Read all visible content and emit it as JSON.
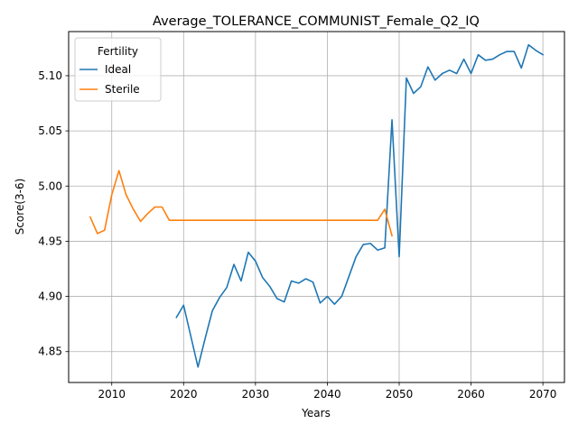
{
  "chart_data": {
    "type": "line",
    "title": "Average_TOLERANCE_COMMUNIST_Female_Q2_IQ",
    "xlabel": "Years",
    "ylabel": "Score(3-6)",
    "xlim": [
      2004,
      2073
    ],
    "ylim": [
      4.822,
      5.14
    ],
    "xticks": [
      2010,
      2020,
      2030,
      2040,
      2050,
      2060,
      2070
    ],
    "yticks": [
      4.85,
      4.9,
      4.95,
      5.0,
      5.05,
      5.1
    ],
    "ytick_labels": [
      "4.85",
      "4.90",
      "4.95",
      "5.00",
      "5.05",
      "5.10"
    ],
    "grid": true,
    "legend": {
      "title": "Fertility",
      "placement": "top-left"
    },
    "series": [
      {
        "name": "Ideal",
        "color": "#1f77b4",
        "x": [
          2019,
          2020,
          2021,
          2022,
          2023,
          2024,
          2025,
          2026,
          2027,
          2028,
          2029,
          2030,
          2031,
          2032,
          2033,
          2034,
          2035,
          2036,
          2037,
          2038,
          2039,
          2040,
          2041,
          2042,
          2043,
          2044,
          2045,
          2046,
          2047,
          2048,
          2049,
          2050,
          2051,
          2052,
          2053,
          2054,
          2055,
          2056,
          2057,
          2058,
          2059,
          2060,
          2061,
          2062,
          2063,
          2064,
          2065,
          2066,
          2067,
          2068,
          2069,
          2070
        ],
        "y": [
          4.881,
          4.892,
          4.864,
          4.836,
          4.862,
          4.887,
          4.899,
          4.908,
          4.929,
          4.914,
          4.94,
          4.932,
          4.917,
          4.909,
          4.898,
          4.895,
          4.914,
          4.912,
          4.916,
          4.913,
          4.894,
          4.9,
          4.893,
          4.9,
          4.918,
          4.936,
          4.947,
          4.948,
          4.942,
          4.944,
          5.06,
          4.936,
          5.098,
          5.084,
          5.09,
          5.108,
          5.096,
          5.102,
          5.105,
          5.102,
          5.115,
          5.102,
          5.119,
          5.114,
          5.115,
          5.119,
          5.122,
          5.122,
          5.107,
          5.128,
          5.123,
          5.119
        ]
      },
      {
        "name": "Sterile",
        "color": "#ff7f0e",
        "x": [
          2007,
          2008,
          2009,
          2010,
          2011,
          2012,
          2013,
          2014,
          2015,
          2016,
          2017,
          2018,
          2019,
          2020,
          2021,
          2022,
          2023,
          2024,
          2025,
          2026,
          2027,
          2028,
          2029,
          2030,
          2031,
          2032,
          2033,
          2034,
          2035,
          2036,
          2037,
          2038,
          2039,
          2040,
          2041,
          2042,
          2043,
          2044,
          2045,
          2046,
          2047,
          2048,
          2049
        ],
        "y": [
          4.972,
          4.957,
          4.96,
          4.992,
          5.014,
          4.992,
          4.979,
          4.968,
          4.975,
          4.981,
          4.981,
          4.969,
          4.969,
          4.969,
          4.969,
          4.969,
          4.969,
          4.969,
          4.969,
          4.969,
          4.969,
          4.969,
          4.969,
          4.969,
          4.969,
          4.969,
          4.969,
          4.969,
          4.969,
          4.969,
          4.969,
          4.969,
          4.969,
          4.969,
          4.969,
          4.969,
          4.969,
          4.969,
          4.969,
          4.969,
          4.969,
          4.979,
          4.955
        ]
      }
    ]
  }
}
